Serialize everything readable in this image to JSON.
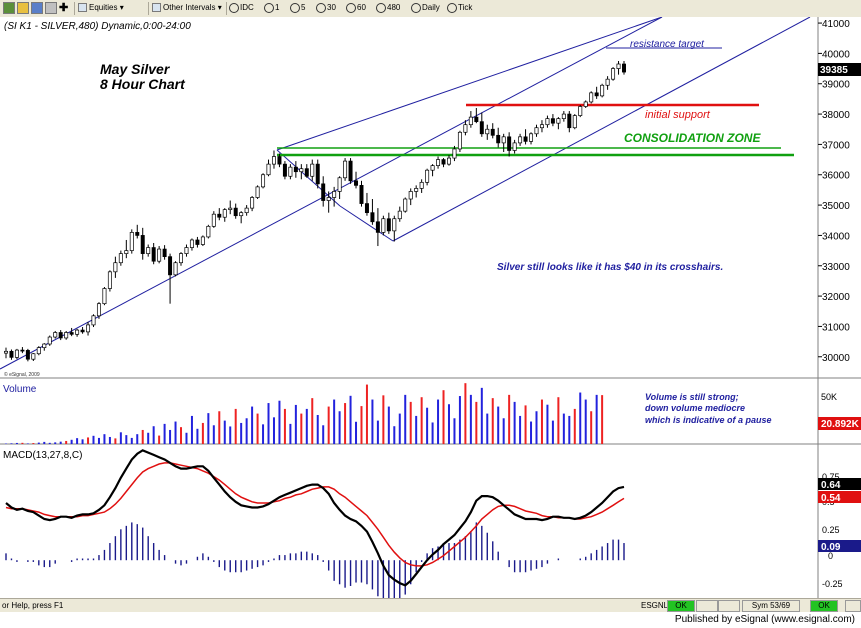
{
  "toolbar": {
    "menu1": "Equities",
    "menu2": "Other Intervals",
    "items": [
      "IDC",
      "1",
      "5",
      "30",
      "60",
      "480",
      "Daily",
      "Tick"
    ]
  },
  "chart_header": "(SI K1 - SILVER,480) Dynamic,0:00-24:00",
  "chart_title": [
    "May Silver",
    "8 Hour Chart"
  ],
  "annotations": {
    "resistance": "resistance target",
    "support": "initial support",
    "consolidation": "CONSOLIDATION ZONE",
    "comment": "Silver still looks like it has $40 in its crosshairs.",
    "volume_note": [
      "Volume is still strong;",
      "down volume mediocre",
      "which is indicative of a pause"
    ],
    "copyright": "© eSignal, 2009"
  },
  "price_axis": {
    "ticks": [
      "41000",
      "40000",
      "39000",
      "38000",
      "37000",
      "36000",
      "35000",
      "34000",
      "33000",
      "32000",
      "31000",
      "30000"
    ],
    "last_price": "39385"
  },
  "volume_panel": {
    "label": "Volume",
    "tick": "50K",
    "last_value": "20.892K"
  },
  "macd_panel": {
    "label": "MACD(13,27,8,C)",
    "ticks": [
      "0.75",
      "0.5",
      "0.25",
      "-0.25"
    ],
    "tick_zero": "0",
    "macd_value": "0.64",
    "signal_value": "0.54",
    "hist_value": "0.09"
  },
  "statusbar": {
    "help": "or Help, press F1",
    "feed": "ESGNL:",
    "ok": "OK",
    "sym": "Sym 53/69"
  },
  "footer": "Published by eSignal (www.esignal.com)",
  "colors": {
    "up": "#ffffff",
    "down": "#000000",
    "channel": "#2020a0",
    "support": "#e01010",
    "consolidation": "#10a010",
    "vol_up": "#2222dd",
    "vol_down": "#ee2222",
    "macd": "#000000",
    "signal": "#e01010",
    "hist": "#1a1a8a",
    "annotation_text": "#2020a0"
  },
  "chart_data": {
    "type": "candlestick",
    "interval": "480",
    "symbol": "SI K1 - SILVER",
    "ylim": [
      29300,
      41200
    ],
    "candles": [
      [
        30120,
        30300,
        29950,
        30180
      ],
      [
        30180,
        30240,
        29900,
        29980
      ],
      [
        29980,
        30260,
        29920,
        30220
      ],
      [
        30220,
        30320,
        30120,
        30210
      ],
      [
        30210,
        30260,
        29850,
        29920
      ],
      [
        29920,
        30120,
        29860,
        30100
      ],
      [
        30100,
        30350,
        30050,
        30300
      ],
      [
        30300,
        30450,
        30200,
        30420
      ],
      [
        30420,
        30700,
        30360,
        30650
      ],
      [
        30650,
        30850,
        30600,
        30800
      ],
      [
        30800,
        30880,
        30550,
        30620
      ],
      [
        30620,
        30850,
        30560,
        30800
      ],
      [
        30800,
        30950,
        30680,
        30740
      ],
      [
        30740,
        30920,
        30660,
        30880
      ],
      [
        30880,
        30980,
        30760,
        30820
      ],
      [
        30820,
        31150,
        30700,
        31050
      ],
      [
        31050,
        31400,
        30980,
        31350
      ],
      [
        31350,
        31800,
        31250,
        31750
      ],
      [
        31750,
        32300,
        31700,
        32250
      ],
      [
        32250,
        32850,
        32150,
        32800
      ],
      [
        32800,
        33300,
        32600,
        33100
      ],
      [
        33100,
        33500,
        33000,
        33400
      ],
      [
        33400,
        33850,
        33250,
        33500
      ],
      [
        33500,
        34200,
        33400,
        34100
      ],
      [
        34100,
        34350,
        33900,
        34000
      ],
      [
        34000,
        34250,
        33200,
        33400
      ],
      [
        33400,
        33700,
        33300,
        33600
      ],
      [
        33600,
        33750,
        33050,
        33150
      ],
      [
        33150,
        33650,
        33080,
        33550
      ],
      [
        33550,
        33680,
        33200,
        33300
      ],
      [
        33300,
        33400,
        31750,
        32700
      ],
      [
        32700,
        33150,
        32650,
        33100
      ],
      [
        33100,
        33450,
        33000,
        33400
      ],
      [
        33400,
        33700,
        33300,
        33600
      ],
      [
        33600,
        33900,
        33500,
        33850
      ],
      [
        33850,
        33950,
        33600,
        33700
      ],
      [
        33700,
        34000,
        33650,
        33950
      ],
      [
        33950,
        34350,
        33900,
        34300
      ],
      [
        34300,
        34800,
        34250,
        34700
      ],
      [
        34700,
        34900,
        34500,
        34600
      ],
      [
        34600,
        34900,
        34450,
        34850
      ],
      [
        34850,
        35150,
        34700,
        34900
      ],
      [
        34900,
        35050,
        34550,
        34650
      ],
      [
        34650,
        34800,
        34400,
        34750
      ],
      [
        34750,
        35000,
        34650,
        34900
      ],
      [
        34900,
        35300,
        34800,
        35250
      ],
      [
        35250,
        35650,
        35200,
        35600
      ],
      [
        35600,
        36050,
        35550,
        36000
      ],
      [
        36000,
        36500,
        35950,
        36350
      ],
      [
        36350,
        36800,
        36200,
        36600
      ],
      [
        36600,
        36700,
        36250,
        36350
      ],
      [
        36350,
        36450,
        35850,
        35950
      ],
      [
        35950,
        36350,
        35850,
        36250
      ],
      [
        36250,
        36450,
        35900,
        36100
      ],
      [
        36100,
        36350,
        35850,
        36200
      ],
      [
        36200,
        36350,
        35900,
        35950
      ],
      [
        35950,
        36500,
        35800,
        36350
      ],
      [
        36350,
        36500,
        35550,
        35700
      ],
      [
        35700,
        35950,
        34950,
        35150
      ],
      [
        35150,
        35450,
        34750,
        35250
      ],
      [
        35250,
        35600,
        34950,
        35450
      ],
      [
        35450,
        35950,
        35200,
        35900
      ],
      [
        35900,
        36550,
        35800,
        36450
      ],
      [
        36450,
        36550,
        35700,
        35800
      ],
      [
        35800,
        36100,
        35550,
        35650
      ],
      [
        35650,
        35800,
        34950,
        35050
      ],
      [
        35050,
        35400,
        34650,
        34750
      ],
      [
        34750,
        35200,
        34350,
        34450
      ],
      [
        34450,
        34900,
        33650,
        34100
      ],
      [
        34100,
        34650,
        34000,
        34550
      ],
      [
        34550,
        34750,
        34050,
        34150
      ],
      [
        34150,
        34650,
        33800,
        34550
      ],
      [
        34550,
        34950,
        34450,
        34800
      ],
      [
        34800,
        35250,
        34750,
        35200
      ],
      [
        35200,
        35550,
        35000,
        35450
      ],
      [
        35450,
        35650,
        35250,
        35550
      ],
      [
        35550,
        35850,
        35400,
        35750
      ],
      [
        35750,
        36200,
        35650,
        36150
      ],
      [
        36150,
        36350,
        35950,
        36300
      ],
      [
        36300,
        36600,
        36200,
        36500
      ],
      [
        36500,
        36550,
        36250,
        36350
      ],
      [
        36350,
        36650,
        36300,
        36550
      ],
      [
        36550,
        36950,
        36450,
        36850
      ],
      [
        36850,
        37450,
        36750,
        37400
      ],
      [
        37400,
        37800,
        37300,
        37650
      ],
      [
        37650,
        38100,
        37550,
        37900
      ],
      [
        37900,
        38200,
        37700,
        37750
      ],
      [
        37750,
        38050,
        37250,
        37350
      ],
      [
        37350,
        37650,
        37150,
        37500
      ],
      [
        37500,
        37700,
        37200,
        37300
      ],
      [
        37300,
        37550,
        36900,
        37050
      ],
      [
        37050,
        37350,
        36750,
        37250
      ],
      [
        37250,
        37400,
        36600,
        36800
      ],
      [
        36800,
        37150,
        36700,
        37050
      ],
      [
        37050,
        37350,
        36950,
        37250
      ],
      [
        37250,
        37500,
        37000,
        37100
      ],
      [
        37100,
        37400,
        37000,
        37350
      ],
      [
        37350,
        37650,
        37250,
        37550
      ],
      [
        37550,
        37800,
        37400,
        37650
      ],
      [
        37650,
        37950,
        37550,
        37850
      ],
      [
        37850,
        38000,
        37600,
        37700
      ],
      [
        37700,
        37900,
        37500,
        37850
      ],
      [
        37850,
        38100,
        37750,
        38000
      ],
      [
        38000,
        38100,
        37400,
        37550
      ],
      [
        37550,
        38000,
        37500,
        37950
      ],
      [
        37950,
        38300,
        37900,
        38250
      ],
      [
        38250,
        38450,
        38200,
        38400
      ],
      [
        38400,
        38750,
        38350,
        38700
      ],
      [
        38700,
        38900,
        38500,
        38600
      ],
      [
        38600,
        39000,
        38550,
        38950
      ],
      [
        38950,
        39250,
        38800,
        39150
      ],
      [
        39150,
        39550,
        39100,
        39500
      ],
      [
        39500,
        39750,
        39300,
        39650
      ],
      [
        39650,
        39750,
        39300,
        39385
      ]
    ],
    "volume": [
      [
        200,
        0
      ],
      [
        300,
        0
      ],
      [
        450,
        0
      ],
      [
        500,
        1
      ],
      [
        250,
        0
      ],
      [
        400,
        1
      ],
      [
        600,
        0
      ],
      [
        900,
        0
      ],
      [
        500,
        0
      ],
      [
        700,
        0
      ],
      [
        1000,
        0
      ],
      [
        1300,
        1
      ],
      [
        1800,
        0
      ],
      [
        2500,
        0
      ],
      [
        2000,
        0
      ],
      [
        2800,
        1
      ],
      [
        3500,
        0
      ],
      [
        2600,
        0
      ],
      [
        4200,
        0
      ],
      [
        3000,
        0
      ],
      [
        2400,
        1
      ],
      [
        5000,
        0
      ],
      [
        3800,
        0
      ],
      [
        2600,
        0
      ],
      [
        4200,
        0
      ],
      [
        6000,
        1
      ],
      [
        4800,
        0
      ],
      [
        7600,
        0
      ],
      [
        3600,
        1
      ],
      [
        8600,
        0
      ],
      [
        6000,
        0
      ],
      [
        9600,
        0
      ],
      [
        7200,
        1
      ],
      [
        4800,
        0
      ],
      [
        12000,
        0
      ],
      [
        6500,
        0
      ],
      [
        9000,
        1
      ],
      [
        13200,
        0
      ],
      [
        8000,
        0
      ],
      [
        14000,
        1
      ],
      [
        10000,
        0
      ],
      [
        7500,
        0
      ],
      [
        15000,
        1
      ],
      [
        9000,
        0
      ],
      [
        11000,
        0
      ],
      [
        16000,
        0
      ],
      [
        13000,
        1
      ],
      [
        8400,
        0
      ],
      [
        17500,
        0
      ],
      [
        11400,
        0
      ],
      [
        18500,
        0
      ],
      [
        15000,
        1
      ],
      [
        8600,
        0
      ],
      [
        16700,
        0
      ],
      [
        13000,
        1
      ],
      [
        15000,
        0
      ],
      [
        19600,
        1
      ],
      [
        12400,
        0
      ],
      [
        8000,
        0
      ],
      [
        16000,
        1
      ],
      [
        19000,
        0
      ],
      [
        14000,
        0
      ],
      [
        17500,
        1
      ],
      [
        20600,
        0
      ],
      [
        9500,
        0
      ],
      [
        16200,
        1
      ],
      [
        25400,
        1
      ],
      [
        19000,
        0
      ],
      [
        10000,
        0
      ],
      [
        20800,
        1
      ],
      [
        16000,
        0
      ],
      [
        7600,
        0
      ],
      [
        13000,
        0
      ],
      [
        21000,
        0
      ],
      [
        18000,
        1
      ],
      [
        12000,
        0
      ],
      [
        20000,
        1
      ],
      [
        15500,
        0
      ],
      [
        9200,
        0
      ],
      [
        19000,
        0
      ],
      [
        23000,
        1
      ],
      [
        17000,
        0
      ],
      [
        11000,
        0
      ],
      [
        20500,
        0
      ],
      [
        26000,
        1
      ],
      [
        21000,
        0
      ],
      [
        18000,
        1
      ],
      [
        24000,
        0
      ],
      [
        13000,
        0
      ],
      [
        19600,
        1
      ],
      [
        16000,
        0
      ],
      [
        11000,
        0
      ],
      [
        21000,
        1
      ],
      [
        18000,
        0
      ],
      [
        12000,
        0
      ],
      [
        16500,
        1
      ],
      [
        9600,
        0
      ],
      [
        14000,
        0
      ],
      [
        19000,
        1
      ],
      [
        16800,
        0
      ],
      [
        10000,
        0
      ],
      [
        20000,
        1
      ],
      [
        13000,
        0
      ],
      [
        12000,
        0
      ],
      [
        15000,
        1
      ],
      [
        22000,
        0
      ],
      [
        19000,
        0
      ],
      [
        14000,
        1
      ],
      [
        21000,
        0
      ],
      [
        20892,
        1
      ]
    ],
    "macd": [
      0.5,
      0.46,
      0.44,
      0.45,
      0.43,
      0.42,
      0.39,
      0.36,
      0.35,
      0.36,
      0.38,
      0.38,
      0.37,
      0.39,
      0.4,
      0.4,
      0.41,
      0.44,
      0.48,
      0.55,
      0.63,
      0.72,
      0.8,
      0.88,
      0.93,
      0.96,
      0.94,
      0.92,
      0.9,
      0.88,
      0.85,
      0.82,
      0.8,
      0.8,
      0.81,
      0.82,
      0.82,
      0.78,
      0.72,
      0.66,
      0.6,
      0.55,
      0.51,
      0.48,
      0.47,
      0.46,
      0.46,
      0.47,
      0.49,
      0.52,
      0.55,
      0.57,
      0.59,
      0.61,
      0.63,
      0.65,
      0.66,
      0.66,
      0.63,
      0.58,
      0.5,
      0.44,
      0.39,
      0.36,
      0.34,
      0.3,
      0.25,
      0.16,
      0.06,
      -0.05,
      -0.13,
      -0.17,
      -0.2,
      -0.22,
      -0.18,
      -0.12,
      -0.06,
      0.0,
      0.05,
      0.09,
      0.14,
      0.18,
      0.22,
      0.28,
      0.34,
      0.42,
      0.52,
      0.56,
      0.56,
      0.55,
      0.52,
      0.48,
      0.44,
      0.4,
      0.38,
      0.36,
      0.36,
      0.36,
      0.35,
      0.36,
      0.38,
      0.38,
      0.37,
      0.37,
      0.36,
      0.37,
      0.39,
      0.42,
      0.46,
      0.5,
      0.55,
      0.6,
      0.63,
      0.64
    ],
    "signal": [
      0.46,
      0.45,
      0.45,
      0.45,
      0.44,
      0.43,
      0.42,
      0.4,
      0.39,
      0.38,
      0.38,
      0.38,
      0.38,
      0.38,
      0.39,
      0.39,
      0.4,
      0.41,
      0.42,
      0.45,
      0.49,
      0.54,
      0.6,
      0.66,
      0.72,
      0.77,
      0.8,
      0.82,
      0.84,
      0.85,
      0.85,
      0.84,
      0.83,
      0.82,
      0.81,
      0.8,
      0.78,
      0.76,
      0.73,
      0.7,
      0.66,
      0.62,
      0.58,
      0.55,
      0.53,
      0.51,
      0.5,
      0.5,
      0.5,
      0.51,
      0.52,
      0.54,
      0.55,
      0.57,
      0.58,
      0.6,
      0.62,
      0.63,
      0.64,
      0.64,
      0.62,
      0.58,
      0.55,
      0.51,
      0.47,
      0.43,
      0.39,
      0.33,
      0.27,
      0.2,
      0.13,
      0.07,
      0.02,
      -0.02,
      -0.04,
      -0.05,
      -0.05,
      -0.04,
      -0.02,
      0.01,
      0.04,
      0.08,
      0.12,
      0.16,
      0.2,
      0.25,
      0.3,
      0.36,
      0.4,
      0.44,
      0.47,
      0.48,
      0.48,
      0.47,
      0.45,
      0.43,
      0.42,
      0.41,
      0.39,
      0.38,
      0.38,
      0.37,
      0.37,
      0.37,
      0.36,
      0.36,
      0.37,
      0.38,
      0.4,
      0.42,
      0.45,
      0.48,
      0.51,
      0.54
    ],
    "macd_ylim": [
      -0.33,
      0.98
    ]
  }
}
